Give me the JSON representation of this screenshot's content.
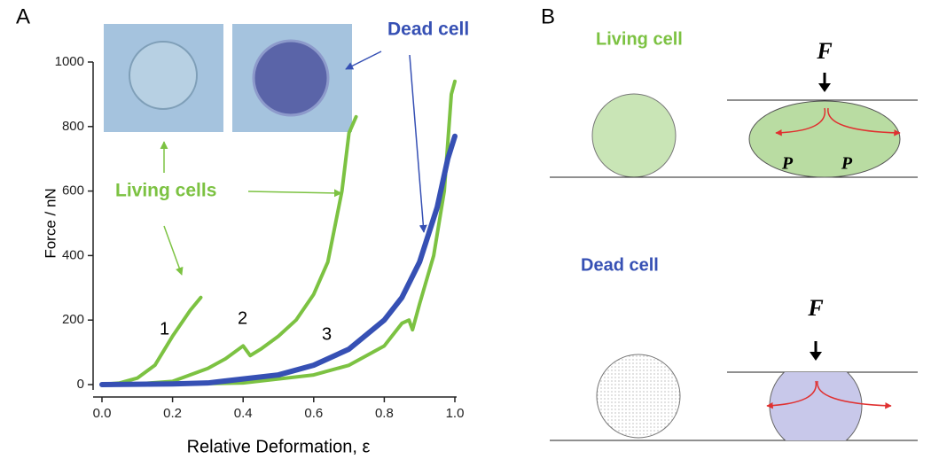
{
  "chart_data": {
    "type": "line",
    "panel_label": "A",
    "xlabel": "Relative Deformation, ε",
    "ylabel": "Force / nN",
    "xlim": [
      0,
      1
    ],
    "ylim": [
      0,
      1000
    ],
    "xticks": [
      {
        "value": 0,
        "label": "0.0"
      },
      0.2,
      0.4,
      0.6,
      0.8,
      {
        "value": 1,
        "label": "1.0"
      }
    ],
    "yticks": [
      0,
      200,
      400,
      600,
      800,
      1000
    ],
    "series": [
      {
        "color": "#7cc242",
        "x": [
          0,
          0.05,
          0.1,
          0.15,
          0.2,
          0.25,
          0.28
        ],
        "values": [
          0,
          5,
          20,
          60,
          150,
          230,
          270
        ]
      },
      {
        "color": "#7cc242",
        "x": [
          0,
          0.1,
          0.2,
          0.3,
          0.35,
          0.4,
          0.42,
          0.45,
          0.5,
          0.55,
          0.6,
          0.64,
          0.68,
          0.7,
          0.72
        ],
        "values": [
          0,
          2,
          10,
          50,
          80,
          120,
          90,
          110,
          150,
          200,
          280,
          380,
          600,
          780,
          830
        ]
      },
      {
        "color": "#7cc242",
        "x": [
          0,
          0.2,
          0.4,
          0.6,
          0.7,
          0.8,
          0.85,
          0.87,
          0.88,
          0.9,
          0.94,
          0.97,
          0.99,
          1
        ],
        "values": [
          0,
          1,
          5,
          30,
          60,
          120,
          190,
          200,
          170,
          250,
          400,
          600,
          900,
          940
        ]
      },
      {
        "color": "#3650b4",
        "x": [
          0,
          0.2,
          0.3,
          0.5,
          0.6,
          0.7,
          0.8,
          0.85,
          0.9,
          0.95,
          0.98,
          1
        ],
        "values": [
          0,
          2,
          5,
          30,
          60,
          110,
          200,
          270,
          380,
          550,
          700,
          770
        ]
      }
    ],
    "annotations": [
      "1",
      "2",
      "3",
      "Living cells",
      "Dead cell"
    ]
  },
  "panel_b": {
    "label": "B",
    "living": "Living cell",
    "dead": "Dead cell",
    "force": "F",
    "pressure": "P"
  }
}
